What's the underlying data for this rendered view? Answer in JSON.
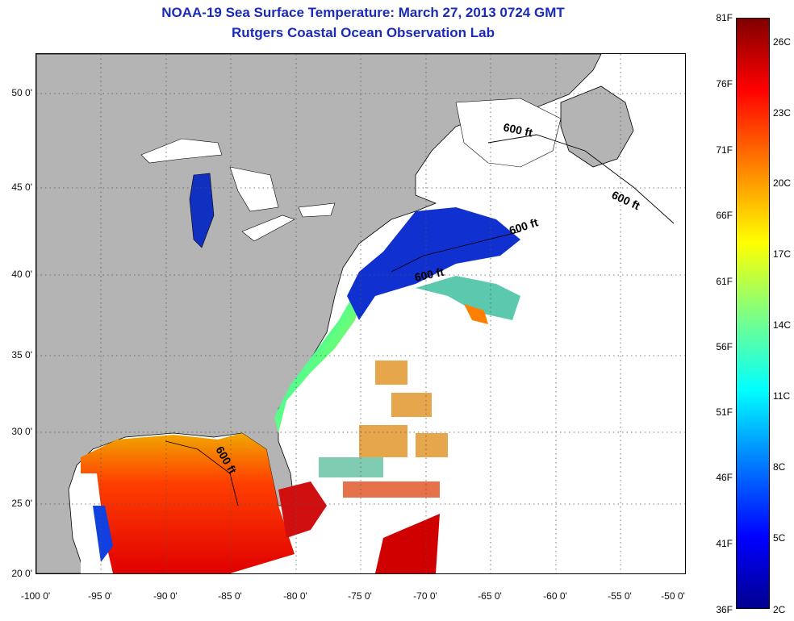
{
  "title": "NOAA-19 Sea Surface Temperature:  March 27, 2013 0724 GMT",
  "subtitle": "Rutgers Coastal Ocean Observation Lab",
  "axes": {
    "longitude_ticks": [
      "-100 0'",
      "-95 0'",
      "-90 0'",
      "-85 0'",
      "-80 0'",
      "-75 0'",
      "-70 0'",
      "-65 0'",
      "-60 0'",
      "-55 0'",
      "-50 0'"
    ],
    "latitude_ticks": [
      "50 0'",
      "45 0'",
      "40 0'",
      "35 0'",
      "30 0'",
      "25 0'",
      "20 0'"
    ],
    "lon_range": [
      -100,
      -50
    ],
    "lat_range": [
      20,
      52.5
    ],
    "grid": "dotted"
  },
  "contour_labels": [
    "600 ft",
    "600 ft",
    "600 ft",
    "600 ft",
    "600 ft"
  ],
  "colorbar": {
    "fahrenheit": [
      "81F",
      "76F",
      "71F",
      "66F",
      "61F",
      "56F",
      "51F",
      "46F",
      "41F",
      "36F"
    ],
    "celsius": [
      "26C",
      "23C",
      "20C",
      "17C",
      "14C",
      "11C",
      "8C",
      "5C",
      "2C"
    ],
    "range_f": [
      36,
      81
    ],
    "range_c": [
      2,
      27
    ]
  },
  "colors": {
    "land": "#b4b4b4",
    "title": "#1a2bb8",
    "no_data": "#ffffff"
  }
}
